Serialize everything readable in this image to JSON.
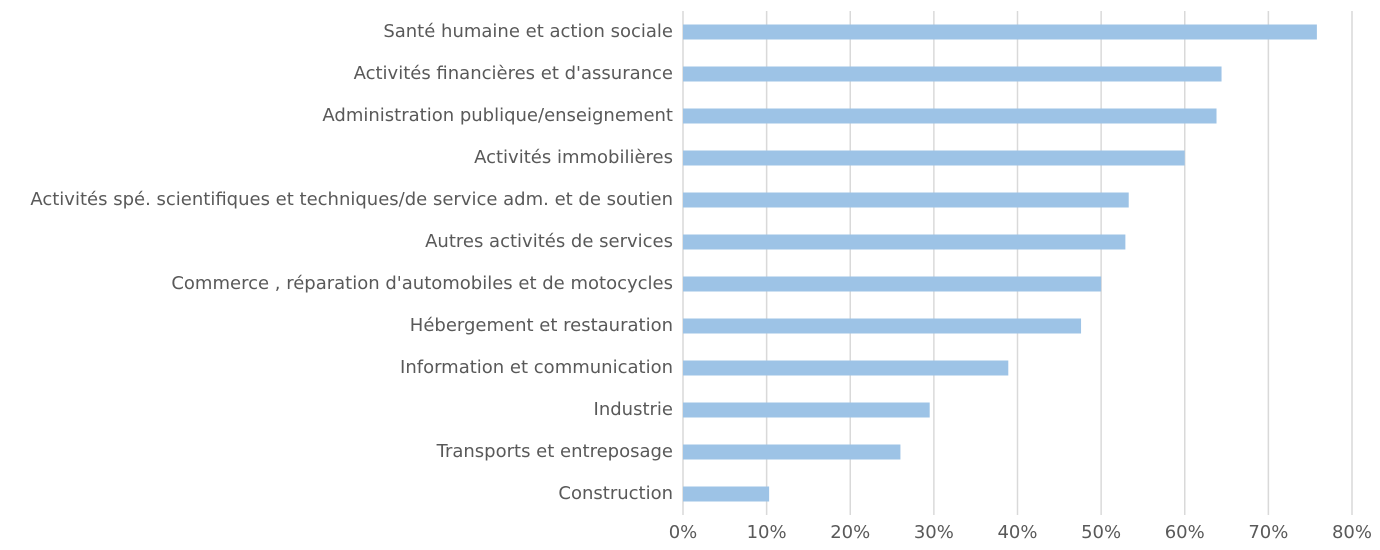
{
  "chart_data": {
    "type": "hbar",
    "categories": [
      "Santé humaine et action sociale",
      "Activités financières et d'assurance",
      "Administration publique/enseignement",
      "Activités immobilières",
      "Activités spé. scientifiques et techniques/de service adm. et de soutien",
      "Autres activités de services",
      "Commerce , réparation d'automobiles et de motocycles",
      "Hébergement et restauration",
      "Information et communication",
      "Industrie",
      "Transports et entreposage",
      "Construction"
    ],
    "values": [
      75.8,
      64.4,
      63.8,
      60.0,
      53.3,
      52.9,
      50.0,
      47.6,
      38.9,
      29.5,
      26.0,
      10.3
    ],
    "color": "#9dc3e6",
    "xlim": [
      0,
      80
    ],
    "xticks": [
      {
        "value": 0,
        "label": "0%"
      },
      {
        "value": 10,
        "label": "10%"
      },
      {
        "value": 20,
        "label": "20%"
      },
      {
        "value": 30,
        "label": "30%"
      },
      {
        "value": 40,
        "label": "40%"
      },
      {
        "value": 50,
        "label": "50%"
      },
      {
        "value": 60,
        "label": "60%"
      },
      {
        "value": 70,
        "label": "70%"
      },
      {
        "value": 80,
        "label": "80%"
      }
    ],
    "grid": true
  }
}
